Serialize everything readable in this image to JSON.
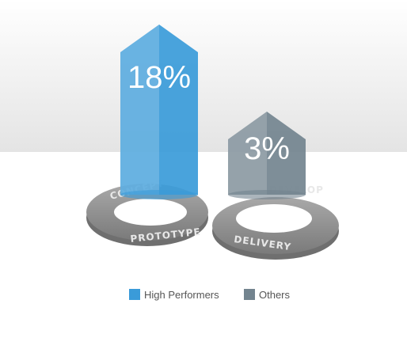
{
  "chart_data": {
    "type": "bar",
    "series": [
      {
        "name": "High Performers",
        "color": "#3a9bd9",
        "values": [
          18
        ],
        "value_labels": [
          "18%"
        ]
      },
      {
        "name": "Others",
        "color": "#73848f",
        "values": [
          3
        ],
        "value_labels": [
          "3%"
        ]
      }
    ],
    "annotations": [
      "CONCEPT",
      "PROTOTYPE",
      "DEVELOP",
      "DELIVERY"
    ]
  }
}
